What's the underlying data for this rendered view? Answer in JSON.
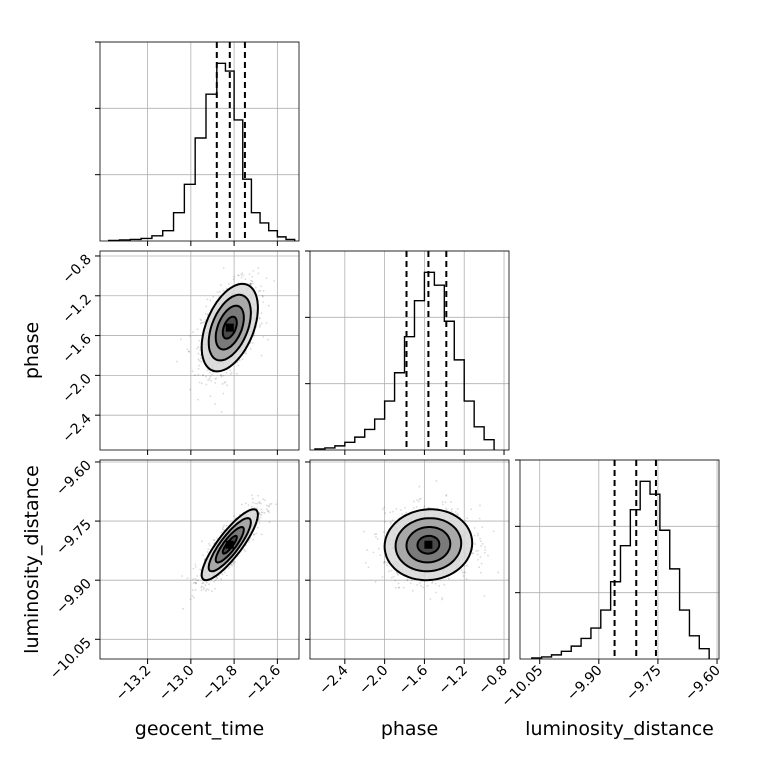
{
  "chart_data": {
    "type": "corner",
    "parameters": [
      "geocent_time",
      "phase",
      "luminosity_distance"
    ],
    "axes": {
      "geocent_time": {
        "label": "geocent_time",
        "range": [
          -13.42,
          -12.5
        ],
        "ticks": [
          -13.2,
          -13.0,
          -12.8,
          -12.6
        ],
        "tick_labels": [
          "−13.2",
          "−13.0",
          "−12.8",
          "−12.6"
        ],
        "quantiles": [
          -12.88,
          -12.82,
          -12.75
        ]
      },
      "phase": {
        "label": "phase",
        "range": [
          -2.75,
          -0.75
        ],
        "ticks": [
          -2.4,
          -2.0,
          -1.6,
          -1.2,
          -0.8
        ],
        "tick_labels": [
          "−2.4",
          "−2.0",
          "−1.6",
          "−1.2",
          "−0.8"
        ],
        "quantiles": [
          -1.78,
          -1.56,
          -1.38
        ]
      },
      "luminosity_distance": {
        "label": "luminosity_distance",
        "range": [
          -10.1,
          -9.595
        ],
        "ticks": [
          -10.05,
          -9.9,
          -9.75,
          -9.6
        ],
        "tick_labels": [
          "−10.05",
          "−9.90",
          "−9.75",
          "−9.60"
        ],
        "quantiles": [
          -9.86,
          -9.805,
          -9.755
        ]
      }
    },
    "histograms": {
      "geocent_time": {
        "bin_edges": [
          -13.38,
          -13.33,
          -13.28,
          -13.23,
          -13.18,
          -13.13,
          -13.08,
          -13.03,
          -12.98,
          -12.93,
          -12.88,
          -12.84,
          -12.8,
          -12.76,
          -12.72,
          -12.68,
          -12.64,
          -12.6,
          -12.56,
          -12.52
        ],
        "counts": [
          1,
          2,
          3,
          5,
          10,
          20,
          55,
          110,
          200,
          285,
          345,
          330,
          235,
          120,
          55,
          35,
          20,
          8,
          3
        ]
      },
      "phase": {
        "bin_edges": [
          -2.7,
          -2.6,
          -2.5,
          -2.4,
          -2.3,
          -2.2,
          -2.1,
          -2.0,
          -1.9,
          -1.8,
          -1.7,
          -1.6,
          -1.5,
          -1.4,
          -1.3,
          -1.2,
          -1.1,
          -1.0,
          -0.9
        ],
        "counts": [
          2,
          4,
          8,
          15,
          25,
          40,
          60,
          95,
          150,
          220,
          290,
          345,
          320,
          250,
          175,
          95,
          45,
          20
        ]
      },
      "luminosity_distance": {
        "bin_edges": [
          -10.07,
          -10.045,
          -10.02,
          -9.995,
          -9.97,
          -9.945,
          -9.92,
          -9.895,
          -9.87,
          -9.845,
          -9.82,
          -9.795,
          -9.77,
          -9.745,
          -9.72,
          -9.695,
          -9.67,
          -9.645,
          -9.62
        ],
        "counts": [
          2,
          4,
          8,
          15,
          25,
          40,
          60,
          95,
          150,
          220,
          290,
          345,
          320,
          250,
          175,
          95,
          45,
          20
        ]
      }
    },
    "contours_2d": [
      {
        "x": "geocent_time",
        "y": "phase",
        "center": [
          -12.82,
          -1.52
        ],
        "correlation": 0.45,
        "sigma": [
          0.065,
          0.22
        ],
        "levels_sigma": [
          0.5,
          1.0,
          1.5,
          2.0
        ]
      },
      {
        "x": "geocent_time",
        "y": "luminosity_distance",
        "center": [
          -12.82,
          -9.81
        ],
        "correlation": 0.85,
        "sigma": [
          0.065,
          0.045
        ],
        "levels_sigma": [
          0.5,
          1.0,
          1.5,
          2.0
        ]
      },
      {
        "x": "phase",
        "y": "luminosity_distance",
        "center": [
          -1.56,
          -9.81
        ],
        "correlation": 0.05,
        "sigma": [
          0.22,
          0.045
        ],
        "levels_sigma": [
          0.5,
          1.0,
          1.5,
          2.0
        ]
      }
    ],
    "grid": true,
    "colors": {
      "line": "#000000",
      "grid": "#b0b0b0",
      "points": "#555555",
      "fill": "#7a7a7a"
    }
  }
}
